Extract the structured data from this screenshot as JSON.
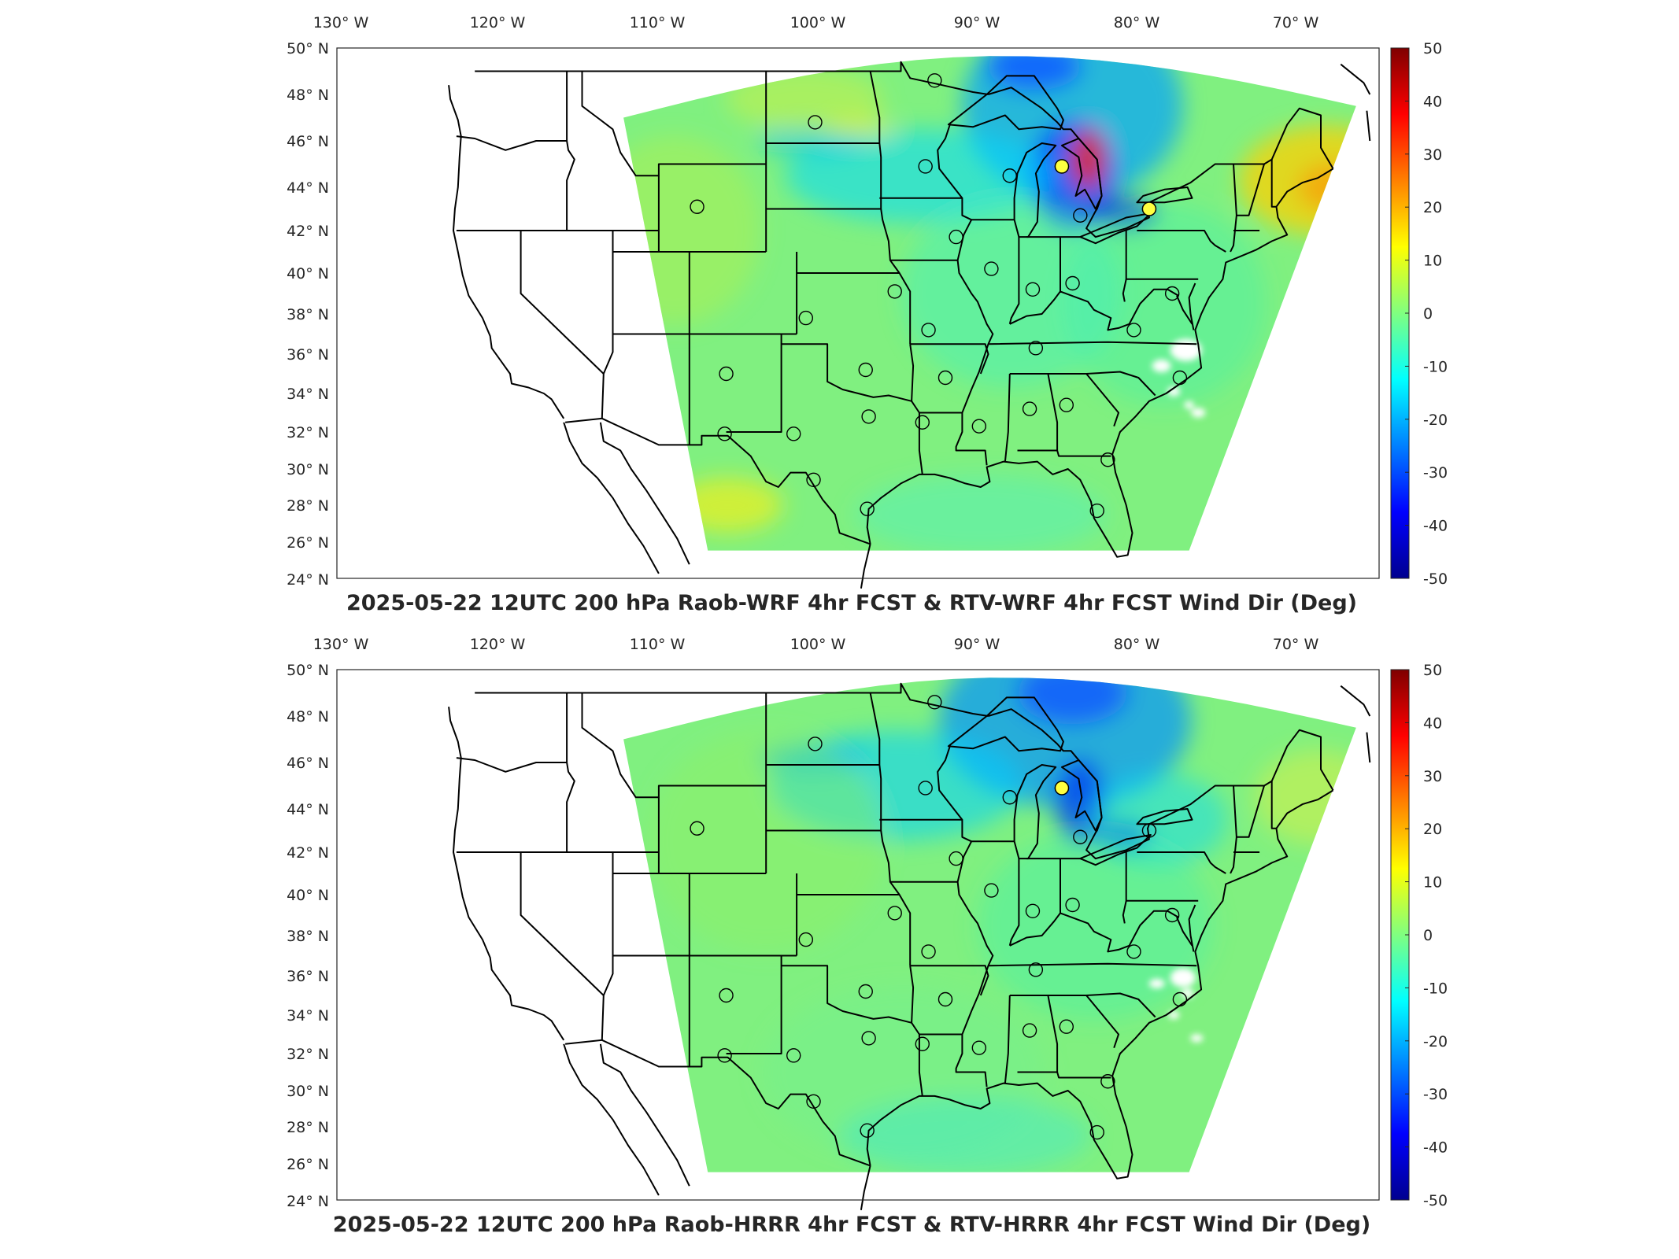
{
  "panels": [
    {
      "id": "wrf",
      "title": "2025-05-22 12UTC 200 hPa Raob-WRF 4hr FCST & RTV-WRF 4hr FCST Wind Dir (Deg)"
    },
    {
      "id": "hrrr",
      "title": "2025-05-22 12UTC 200 hPa Raob-HRRR 4hr FCST & RTV-HRRR 4hr FCST Wind Dir (Deg)"
    }
  ],
  "lon_labels": [
    "130° W",
    "120° W",
    "110° W",
    "100° W",
    "90° W",
    "80° W",
    "70° W"
  ],
  "lat_labels": [
    "50° N",
    "48° N",
    "46° N",
    "44° N",
    "42° N",
    "40° N",
    "38° N",
    "36° N",
    "34° N",
    "32° N",
    "30° N",
    "28° N",
    "26° N",
    "24° N"
  ],
  "colorbar": {
    "ticks": [
      "50",
      "40",
      "30",
      "20",
      "10",
      "0",
      "-10",
      "-20",
      "-30",
      "-40",
      "-50"
    ],
    "colors": [
      "#7f0000",
      "#ff0000",
      "#ff8000",
      "#ffff00",
      "#80ff80",
      "#00ffff",
      "#0080ff",
      "#0000ff",
      "#00008f"
    ]
  },
  "chart_data": {
    "type": "heatmap",
    "variable": "Wind Dir (Deg)",
    "level": "200 hPa",
    "zlim": [
      -50,
      50
    ],
    "xlim": [
      -132,
      -64
    ],
    "ylim": [
      24,
      50
    ],
    "raob_stations": [
      [
        -100.8,
        46.8
      ],
      [
        -93.6,
        44.9
      ],
      [
        -88.1,
        44.5
      ],
      [
        -84.7,
        44.9
      ],
      [
        -83.5,
        42.7
      ],
      [
        -79.0,
        43.0
      ],
      [
        -108.5,
        43.1
      ],
      [
        -91.6,
        41.7
      ],
      [
        -89.3,
        40.2
      ],
      [
        -86.6,
        39.2
      ],
      [
        -84.0,
        39.5
      ],
      [
        -77.5,
        39.0
      ],
      [
        -95.6,
        39.1
      ],
      [
        -101.4,
        37.8
      ],
      [
        -93.4,
        37.2
      ],
      [
        -86.4,
        36.3
      ],
      [
        -80.0,
        37.2
      ],
      [
        -106.6,
        35.0
      ],
      [
        -97.5,
        35.2
      ],
      [
        -92.3,
        34.8
      ],
      [
        -77.0,
        34.8
      ],
      [
        -106.7,
        31.9
      ],
      [
        -102.2,
        31.9
      ],
      [
        -97.3,
        32.8
      ],
      [
        -93.8,
        32.5
      ],
      [
        -90.1,
        32.3
      ],
      [
        -86.8,
        33.2
      ],
      [
        -84.4,
        33.4
      ],
      [
        -81.7,
        30.5
      ],
      [
        -100.9,
        29.4
      ],
      [
        -97.4,
        27.8
      ],
      [
        -82.4,
        27.7
      ],
      [
        -93.0,
        48.6
      ]
    ],
    "highlight_stations": {
      "wrf": [
        [
          -84.7,
          44.9
        ],
        [
          -79.0,
          43.0
        ]
      ],
      "hrrr": [
        [
          -84.7,
          44.9
        ]
      ]
    }
  }
}
